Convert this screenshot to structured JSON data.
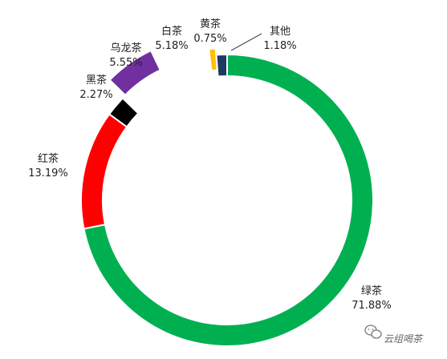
{
  "chart_data": {
    "type": "pie",
    "title": "",
    "slices": [
      {
        "name": "绿茶",
        "value": 71.88,
        "label": "71.88%",
        "color": "#00b050"
      },
      {
        "name": "红茶",
        "value": 13.19,
        "label": "13.19%",
        "color": "#ff0000"
      },
      {
        "name": "黑茶",
        "value": 2.27,
        "label": "2.27%",
        "color": "#000000"
      },
      {
        "name": "乌龙茶",
        "value": 5.55,
        "label": "5.55%",
        "color": "#7030a0"
      },
      {
        "name": "白茶",
        "value": 5.18,
        "label": "5.18%",
        "color": "#ffffff"
      },
      {
        "name": "黄茶",
        "value": 0.75,
        "label": "0.75%",
        "color": "#ffc000"
      },
      {
        "name": "其他",
        "value": 1.18,
        "label": "1.18%",
        "color": "#1f3864"
      }
    ]
  },
  "watermark": {
    "text": "云组喝茶",
    "icon": "wechat-icon"
  }
}
